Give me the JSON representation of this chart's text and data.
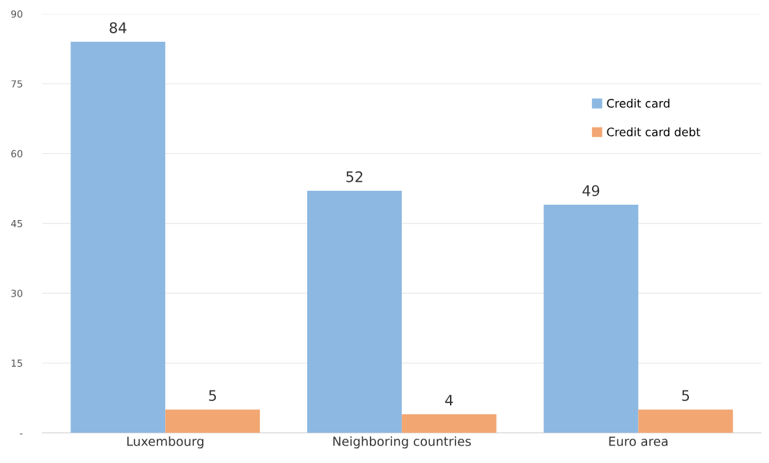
{
  "chart_data": {
    "type": "bar",
    "categories": [
      "Luxembourg",
      "Neighboring countries",
      "Euro area"
    ],
    "series": [
      {
        "name": "Credit card",
        "color": "#8cb8e2",
        "values": [
          84,
          52,
          49
        ]
      },
      {
        "name": "Credit card debt",
        "color": "#f2a672",
        "values": [
          5,
          4,
          5
        ]
      }
    ],
    "ylim": [
      0,
      90
    ],
    "yticks": [
      {
        "value": 0,
        "label": "-"
      },
      15,
      30,
      45,
      60,
      75,
      90
    ],
    "grid": "y",
    "legend": "right",
    "data_labels": true
  }
}
